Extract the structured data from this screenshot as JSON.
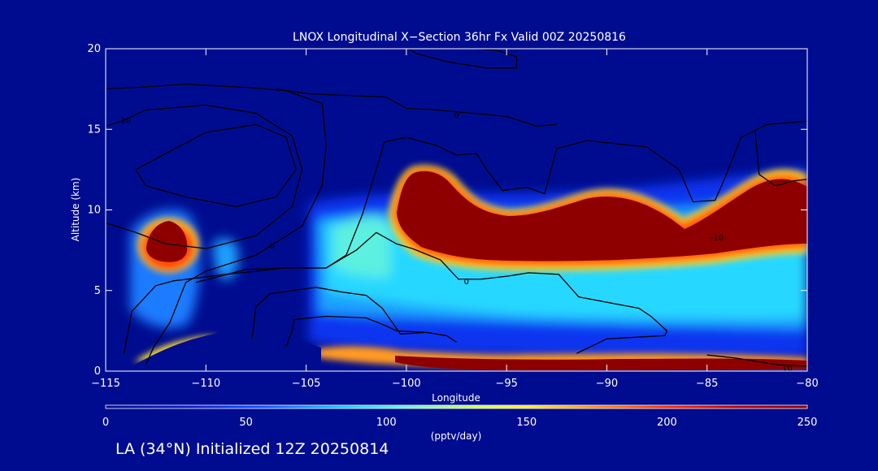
{
  "chart_data": {
    "type": "heatmap",
    "title": "LNOX Longitudinal X−Section 36hr  Fx Valid 00Z 20250816",
    "xlabel": "Longitude",
    "ylabel": "Altitude (km)",
    "xlim": [
      -115,
      -80
    ],
    "ylim": [
      0,
      20
    ],
    "x_ticks": [
      -115,
      -110,
      -105,
      -100,
      -95,
      -90,
      -85,
      -80
    ],
    "x_tick_labels": [
      "−115",
      "−110",
      "−105",
      "−100",
      "−95",
      "−90",
      "−85",
      "−80"
    ],
    "y_ticks": [
      0,
      5,
      10,
      15,
      20
    ],
    "y_tick_labels": [
      "0",
      "5",
      "10",
      "15",
      "20"
    ],
    "colorbar": {
      "min": 0,
      "max": 250,
      "ticks": [
        0,
        50,
        100,
        150,
        200,
        250
      ],
      "tick_labels": [
        "0",
        "50",
        "100",
        "150",
        "200",
        "250"
      ],
      "label": "(pptv/day)"
    },
    "contour_labels": [
      {
        "text": "10",
        "lon": -114,
        "alt": 15.6
      },
      {
        "text": "0",
        "lon": -106.7,
        "alt": 7.8
      },
      {
        "text": "0",
        "lon": -97.5,
        "alt": 15.9
      },
      {
        "text": "0",
        "lon": -97,
        "alt": 5.6
      },
      {
        "text": "-10",
        "lon": -84.5,
        "alt": 8.3
      },
      {
        "text": "10",
        "lon": -81,
        "alt": 0.2
      }
    ],
    "contours": [
      {
        "name": "jet-core",
        "points": [
          [
            -113.5,
            12.5
          ],
          [
            -112,
            13.5
          ],
          [
            -110,
            14.8
          ],
          [
            -107.5,
            15.3
          ],
          [
            -106,
            14.5
          ],
          [
            -105.5,
            12.5
          ],
          [
            -106.5,
            10.8
          ],
          [
            -108.5,
            10.2
          ],
          [
            -111,
            10.8
          ],
          [
            -113,
            11.5
          ],
          [
            -113.5,
            12.5
          ]
        ]
      },
      {
        "name": "upper-left-10",
        "points": [
          [
            -115,
            15.2
          ],
          [
            -114.2,
            15.5
          ],
          [
            -113,
            16.2
          ],
          [
            -110,
            16.5
          ],
          [
            -107.5,
            16
          ],
          [
            -105.7,
            14.6
          ],
          [
            -105.2,
            12.5
          ],
          [
            -105.7,
            10.2
          ],
          [
            -107.5,
            8.4
          ],
          [
            -110,
            7.6
          ],
          [
            -112,
            7.9
          ],
          [
            -113.5,
            8.6
          ],
          [
            -115,
            9.2
          ]
        ]
      },
      {
        "name": "left-tall",
        "points": [
          [
            -115,
            17.5
          ],
          [
            -113.5,
            17.6
          ],
          [
            -111,
            17.8
          ],
          [
            -108,
            17.6
          ],
          [
            -106,
            17.4
          ],
          [
            -104.2,
            16.6
          ],
          [
            -104,
            14
          ],
          [
            -104.2,
            11.5
          ],
          [
            -105.2,
            9
          ],
          [
            -107.5,
            7.2
          ],
          [
            -110,
            6.2
          ],
          [
            -111,
            5.5
          ],
          [
            -111.8,
            3
          ],
          [
            -112.6,
            1.5
          ],
          [
            -113,
            0.4
          ]
        ]
      },
      {
        "name": "top-center",
        "points": [
          [
            -106.5,
            17.5
          ],
          [
            -104.8,
            17.2
          ],
          [
            -101,
            17
          ],
          [
            -100,
            16.3
          ],
          [
            -98.5,
            16.2
          ],
          [
            -95,
            15.8
          ],
          [
            -93.5,
            15.2
          ],
          [
            -92.5,
            15.3
          ]
        ]
      },
      {
        "name": "top-band",
        "points": [
          [
            -100,
            20.1
          ],
          [
            -99.5,
            19.7
          ],
          [
            -98,
            19.2
          ],
          [
            -96,
            18.8
          ],
          [
            -94.5,
            18.8
          ],
          [
            -94.5,
            19.5
          ],
          [
            -95.5,
            19.9
          ],
          [
            -97,
            20.05
          ]
        ]
      },
      {
        "name": "mid-left",
        "points": [
          [
            -110.5,
            5.5
          ],
          [
            -108,
            6.3
          ],
          [
            -106,
            6.4
          ],
          [
            -104,
            6.4
          ],
          [
            -103,
            7.2
          ],
          [
            -102.2,
            9.7
          ],
          [
            -101.5,
            12.5
          ],
          [
            -101.1,
            14.2
          ],
          [
            -100,
            14.5
          ],
          [
            -98.5,
            14
          ],
          [
            -97.5,
            13.4
          ],
          [
            -96.5,
            13.5
          ],
          [
            -96,
            12.5
          ],
          [
            -95.2,
            11.2
          ],
          [
            -94,
            11.4
          ],
          [
            -93.1,
            11
          ],
          [
            -92.5,
            13.8
          ],
          [
            -91,
            14.3
          ],
          [
            -88,
            13.9
          ],
          [
            -86.4,
            12.5
          ],
          [
            -85.7,
            10.5
          ],
          [
            -84.6,
            10.6
          ],
          [
            -84.1,
            12
          ],
          [
            -83.3,
            14.5
          ],
          [
            -82,
            15.3
          ],
          [
            -80,
            15.5
          ]
        ]
      },
      {
        "name": "zero-line",
        "points": [
          [
            -114.1,
            1
          ],
          [
            -113.7,
            3.7
          ],
          [
            -112.5,
            5.3
          ],
          [
            -111.6,
            5.6
          ],
          [
            -109,
            6
          ],
          [
            -106,
            6.4
          ],
          [
            -104,
            6.4
          ],
          [
            -102.5,
            7.5
          ],
          [
            -101.5,
            8.6
          ],
          [
            -100.5,
            7.9
          ],
          [
            -99.7,
            7.6
          ],
          [
            -98.3,
            6.9
          ],
          [
            -97.4,
            5.7
          ],
          [
            -96.3,
            5.7
          ],
          [
            -94.9,
            5.9
          ],
          [
            -93.9,
            6.1
          ],
          [
            -92.4,
            6
          ],
          [
            -91.4,
            4.6
          ],
          [
            -88.4,
            3.9
          ],
          [
            -87.8,
            3.4
          ],
          [
            -87,
            2.5
          ],
          [
            -87.1,
            2.2
          ],
          [
            -90,
            2
          ],
          [
            -91.5,
            1.1
          ]
        ]
      },
      {
        "name": "lower-left-a",
        "points": [
          [
            -107.7,
            2
          ],
          [
            -107.5,
            4
          ],
          [
            -106.8,
            4.8
          ],
          [
            -104.5,
            5.2
          ],
          [
            -103.2,
            4.9
          ],
          [
            -102,
            4.7
          ],
          [
            -101.2,
            3.9
          ],
          [
            -100.3,
            2.3
          ],
          [
            -99,
            2.4
          ],
          [
            -98,
            2.2
          ],
          [
            -97.5,
            1.8
          ]
        ]
      },
      {
        "name": "lower-left-b",
        "points": [
          [
            -106,
            1.5
          ],
          [
            -105.7,
            2.5
          ],
          [
            -105.6,
            3.2
          ],
          [
            -104,
            3.4
          ],
          [
            -102,
            3.3
          ],
          [
            -101,
            2.8
          ],
          [
            -100.5,
            2.5
          ],
          [
            -99,
            2.4
          ]
        ]
      },
      {
        "name": "right-dip",
        "points": [
          [
            -82.6,
            14.9
          ],
          [
            -82.4,
            12.2
          ],
          [
            -81.6,
            11.5
          ],
          [
            -80.7,
            11.8
          ],
          [
            -80,
            11.9
          ]
        ]
      },
      {
        "name": "bottom-right",
        "points": [
          [
            -85,
            1
          ],
          [
            -83.5,
            0.8
          ],
          [
            -81.5,
            0.4
          ],
          [
            -80,
            0.3
          ]
        ]
      }
    ]
  },
  "footer": {
    "caption": "LA (34°N) Initialized 12Z 20250814"
  }
}
